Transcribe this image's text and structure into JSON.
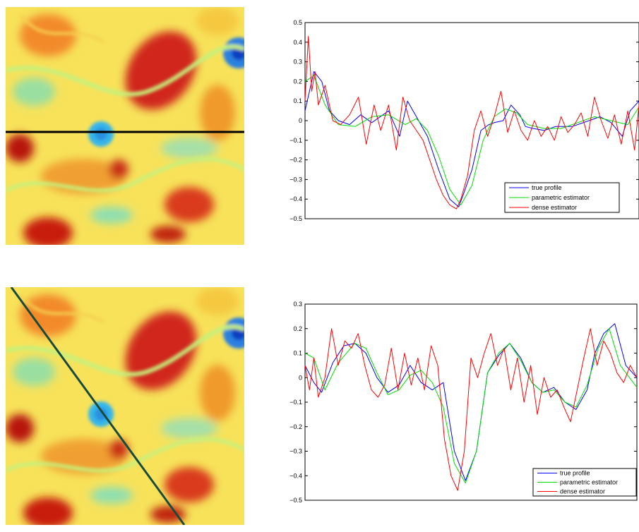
{
  "chart_data": [
    {
      "type": "line",
      "title": "",
      "xlabel": "",
      "ylabel": "",
      "x_range": [
        0,
        300
      ],
      "ylim": [
        -0.5,
        0.5
      ],
      "yticks": [
        "0.5",
        "0.4",
        "0.3",
        "0.2",
        "0.1",
        "0",
        "−0.1",
        "−0.2",
        "−0.3",
        "−0.4",
        "−0.5"
      ],
      "yticks_values": [
        0.5,
        0.4,
        0.3,
        0.2,
        0.1,
        0,
        -0.1,
        -0.2,
        -0.3,
        -0.4,
        -0.5
      ],
      "legend_position": "bottom-right",
      "series": [
        {
          "name": "true profile",
          "color": "#0000ff",
          "x": [
            0,
            8,
            15,
            22,
            30,
            40,
            50,
            60,
            75,
            85,
            92,
            100,
            110,
            120,
            130,
            138,
            142,
            150,
            158,
            165,
            170,
            178,
            185,
            193,
            198,
            205,
            215,
            225,
            240,
            255,
            265,
            275,
            285,
            292,
            300
          ],
          "y": [
            0.05,
            0.25,
            0.2,
            0.05,
            0.0,
            -0.02,
            0.03,
            -0.01,
            0.05,
            -0.08,
            0.1,
            0.02,
            -0.08,
            -0.25,
            -0.4,
            -0.44,
            -0.38,
            -0.25,
            -0.05,
            -0.02,
            -0.01,
            0.0,
            0.08,
            0.03,
            -0.03,
            -0.04,
            -0.05,
            -0.03,
            -0.03,
            0.0,
            0.02,
            -0.01,
            -0.08,
            0.05,
            0.1
          ]
        },
        {
          "name": "parametric estimator",
          "color": "#00dd00",
          "x": [
            0,
            8,
            18,
            30,
            45,
            60,
            75,
            90,
            100,
            110,
            120,
            130,
            140,
            150,
            160,
            170,
            180,
            190,
            200,
            215,
            230,
            245,
            260,
            275,
            290,
            300
          ],
          "y": [
            0.2,
            0.23,
            0.08,
            -0.02,
            -0.03,
            0.02,
            0.03,
            -0.02,
            0.01,
            -0.05,
            -0.18,
            -0.35,
            -0.43,
            -0.33,
            -0.1,
            0.02,
            0.06,
            0.04,
            -0.02,
            -0.04,
            -0.04,
            -0.01,
            0.02,
            0.0,
            -0.02,
            0.07
          ]
        },
        {
          "name": "dense estimator",
          "color": "#ff0000",
          "x": [
            0,
            3,
            6,
            9,
            12,
            18,
            25,
            32,
            40,
            48,
            55,
            62,
            68,
            75,
            82,
            88,
            94,
            100,
            106,
            112,
            118,
            124,
            130,
            136,
            140,
            146,
            152,
            158,
            164,
            170,
            176,
            182,
            188,
            194,
            200,
            206,
            212,
            218,
            224,
            230,
            236,
            242,
            248,
            254,
            260,
            266,
            272,
            278,
            284,
            290,
            296,
            300
          ],
          "y": [
            0.1,
            0.43,
            0.15,
            0.25,
            0.08,
            0.18,
            0.0,
            -0.02,
            0.03,
            0.12,
            -0.12,
            0.08,
            -0.05,
            0.08,
            -0.15,
            0.12,
            0.0,
            -0.05,
            -0.1,
            -0.2,
            -0.3,
            -0.38,
            -0.43,
            -0.45,
            -0.4,
            -0.28,
            -0.05,
            0.05,
            -0.08,
            0.02,
            0.15,
            -0.06,
            0.05,
            -0.05,
            -0.1,
            0.0,
            -0.08,
            -0.03,
            -0.1,
            0.02,
            -0.06,
            -0.02,
            0.04,
            -0.08,
            0.12,
            0.0,
            -0.09,
            0.03,
            -0.12,
            0.05,
            -0.15,
            0.08
          ]
        }
      ]
    },
    {
      "type": "line",
      "title": "",
      "xlabel": "",
      "ylabel": "",
      "x_range": [
        0,
        300
      ],
      "ylim": [
        -0.5,
        0.3
      ],
      "yticks": [
        "0.3",
        "0.2",
        "0.1",
        "0",
        "−0.1",
        "−0.2",
        "−0.3",
        "−0.4",
        "−0.5"
      ],
      "yticks_values": [
        0.3,
        0.2,
        0.1,
        0,
        -0.1,
        -0.2,
        -0.3,
        -0.4,
        -0.5
      ],
      "legend_position": "bottom-right",
      "series": [
        {
          "name": "true profile",
          "color": "#0000ff",
          "x": [
            0,
            8,
            15,
            25,
            35,
            45,
            55,
            65,
            75,
            85,
            95,
            105,
            115,
            125,
            135,
            145,
            155,
            165,
            175,
            185,
            195,
            205,
            215,
            225,
            235,
            245,
            255,
            262,
            270,
            280,
            290,
            300
          ],
          "y": [
            0.05,
            -0.02,
            -0.06,
            0.06,
            0.13,
            0.14,
            0.1,
            0.0,
            -0.06,
            -0.03,
            0.05,
            -0.02,
            -0.05,
            -0.02,
            -0.3,
            -0.42,
            -0.3,
            0.02,
            0.09,
            0.14,
            0.08,
            -0.02,
            -0.06,
            -0.04,
            -0.1,
            -0.13,
            -0.05,
            0.1,
            0.18,
            0.22,
            0.05,
            0.0
          ]
        },
        {
          "name": "parametric estimator",
          "color": "#00dd00",
          "x": [
            0,
            8,
            18,
            30,
            45,
            55,
            65,
            75,
            85,
            95,
            105,
            115,
            125,
            135,
            145,
            155,
            165,
            175,
            185,
            195,
            205,
            215,
            225,
            235,
            245,
            255,
            265,
            275,
            285,
            300
          ],
          "y": [
            0.1,
            0.08,
            -0.05,
            0.06,
            0.14,
            0.12,
            0.02,
            -0.07,
            -0.05,
            0.01,
            0.03,
            -0.02,
            -0.12,
            -0.35,
            -0.43,
            -0.3,
            0.02,
            0.1,
            0.14,
            0.07,
            -0.02,
            -0.06,
            -0.05,
            -0.1,
            -0.12,
            -0.03,
            0.12,
            0.2,
            0.05,
            -0.04
          ]
        },
        {
          "name": "dense estimator",
          "color": "#ff0000",
          "x": [
            0,
            4,
            8,
            12,
            18,
            24,
            30,
            36,
            42,
            48,
            54,
            60,
            66,
            72,
            78,
            84,
            90,
            96,
            102,
            108,
            114,
            120,
            126,
            132,
            138,
            144,
            150,
            156,
            162,
            168,
            174,
            180,
            186,
            192,
            198,
            204,
            210,
            216,
            222,
            228,
            234,
            240,
            246,
            252,
            258,
            264,
            270,
            276,
            282,
            288,
            294,
            300
          ],
          "y": [
            0.05,
            -0.05,
            0.08,
            -0.08,
            0.0,
            0.2,
            0.05,
            0.15,
            0.12,
            0.18,
            0.05,
            -0.05,
            -0.08,
            -0.03,
            0.12,
            -0.05,
            0.1,
            -0.03,
            0.08,
            -0.05,
            0.13,
            0.05,
            -0.25,
            -0.4,
            -0.46,
            -0.3,
            0.08,
            0.0,
            0.1,
            0.18,
            0.05,
            0.12,
            -0.05,
            0.08,
            -0.1,
            0.05,
            -0.15,
            0.0,
            -0.08,
            -0.05,
            -0.12,
            -0.18,
            -0.05,
            0.08,
            0.2,
            0.05,
            0.15,
            0.1,
            0.02,
            -0.02,
            0.05,
            0.0
          ]
        }
      ]
    }
  ]
}
